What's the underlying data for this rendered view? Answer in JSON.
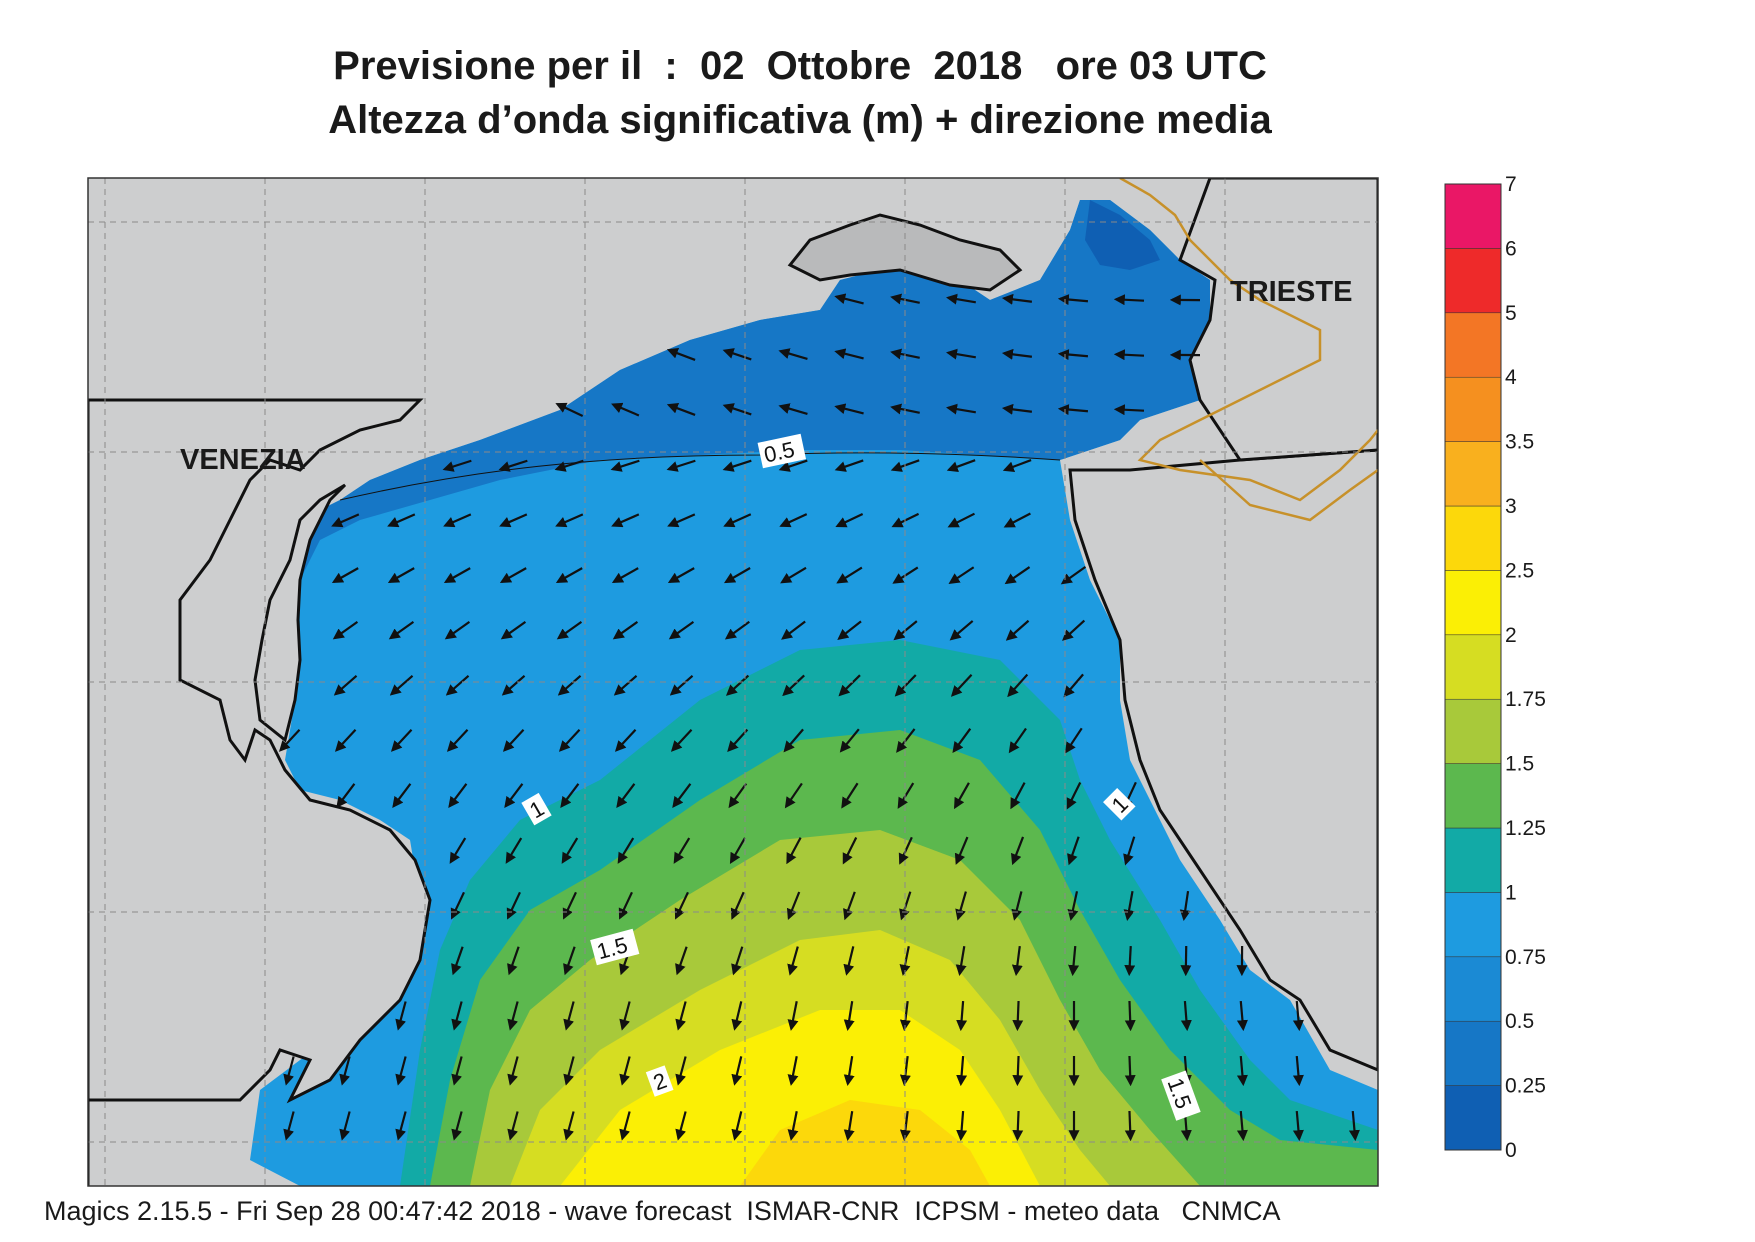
{
  "title": {
    "line1": "Previsione per il  :  02  Ottobre  2018   ore 03 UTC",
    "line2": "Altezza d’onda significativa (m) + direzione media"
  },
  "cities": {
    "venezia": "VENEZIA",
    "trieste": "TRIESTE"
  },
  "contour_labels": [
    "0.5",
    "1",
    "1",
    "1.5",
    "2",
    "1.5"
  ],
  "legend": {
    "unit": "m",
    "stops": [
      {
        "label": "0",
        "color": "#0f5fb3"
      },
      {
        "label": "0.25",
        "color": "#1677c6"
      },
      {
        "label": "0.5",
        "color": "#1b8ad4"
      },
      {
        "label": "0.75",
        "color": "#1e9be0"
      },
      {
        "label": "1",
        "color": "#12aaa6"
      },
      {
        "label": "1.25",
        "color": "#5cb84e"
      },
      {
        "label": "1.5",
        "color": "#a8c93a"
      },
      {
        "label": "1.75",
        "color": "#d6dd22"
      },
      {
        "label": "2",
        "color": "#fbef05"
      },
      {
        "label": "2.5",
        "color": "#fcd80b"
      },
      {
        "label": "3",
        "color": "#f9b01e"
      },
      {
        "label": "3.5",
        "color": "#f5901f"
      },
      {
        "label": "4",
        "color": "#f37625"
      },
      {
        "label": "5",
        "color": "#ee2a2a"
      },
      {
        "label": "6",
        "color": "#ea1766"
      },
      {
        "label": "7",
        "color": ""
      }
    ]
  },
  "colors": {
    "land": "#cdcecf",
    "border": "#c7912a",
    "coast": "#111111"
  },
  "footer": "Magics 2.15.5 - Fri Sep 28 00:47:42 2018 - wave forecast  ISMAR-CNR  ICPSM - meteo data   CNMCA"
}
